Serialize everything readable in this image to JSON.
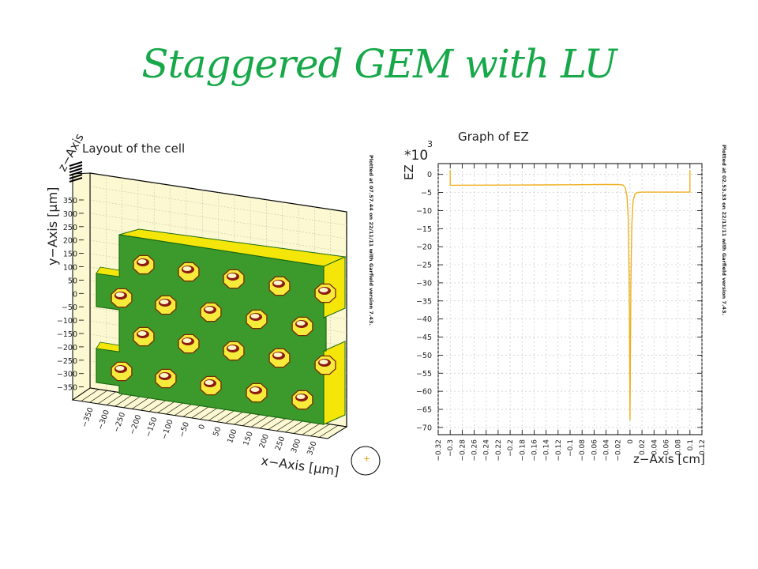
{
  "slide": {
    "title": "Staggered GEM with LU"
  },
  "colors": {
    "title": "#17a84a",
    "board": "#3c9a2d",
    "board_edge": "#f5e60a",
    "hole_rim": "#8b1a10",
    "hole_fill": "#f6ea3a",
    "frame_fill": "#fbf8d2",
    "curve": "#f0b020",
    "grid": "#c8c8c8"
  },
  "left_plot": {
    "title": "Layout of the cell",
    "x_axis_label": "x−Axis [μm]",
    "y_axis_label": "y−Axis [μm]",
    "z_axis_label": "z−Axis",
    "x_ticks": [
      "−350",
      "−300",
      "−250",
      "−200",
      "−150",
      "−100",
      "−50",
      "0",
      "50",
      "100",
      "150",
      "200",
      "250",
      "300",
      "350"
    ],
    "y_ticks": [
      "350",
      "300",
      "250",
      "200",
      "150",
      "100",
      "50",
      "0",
      "−50",
      "−100",
      "−150",
      "−200",
      "−250",
      "−300",
      "−350"
    ],
    "side_note": "Plotted at 07.57.44 on 22/11/11 with Garfield version 7.43.",
    "compass_marker": "+"
  },
  "chart_data": {
    "type": "line",
    "title": "Graph of EZ",
    "xlabel": "z−Axis [cm]",
    "ylabel": "EZ",
    "y_multiplier": "*10",
    "y_multiplier_exp": "3",
    "xlim": [
      -0.32,
      0.12
    ],
    "ylim": [
      -72,
      3
    ],
    "grid": true,
    "x_ticks": [
      -0.32,
      -0.3,
      -0.28,
      -0.26,
      -0.24,
      -0.22,
      -0.2,
      -0.18,
      -0.16,
      -0.14,
      -0.12,
      -0.1,
      -0.08,
      -0.06,
      -0.04,
      -0.02,
      0,
      0.02,
      0.04,
      0.06,
      0.08,
      0.1,
      0.12
    ],
    "x_tick_labels": [
      "−0.32",
      "−0.3",
      "−0.28",
      "−0.26",
      "−0.24",
      "−0.22",
      "−0.2",
      "−0.18",
      "−0.16",
      "−0.14",
      "−0.12",
      "−0.1",
      "−0.08",
      "−0.06",
      "−0.04",
      "−0.02",
      "0",
      "0.02",
      "0.04",
      "0.06",
      "0.08",
      "0.1",
      "0.12"
    ],
    "y_ticks": [
      0,
      -5,
      -10,
      -15,
      -20,
      -25,
      -30,
      -35,
      -40,
      -45,
      -50,
      -55,
      -60,
      -65,
      -70
    ],
    "y_tick_labels": [
      "0",
      "−5",
      "−10",
      "−15",
      "−20",
      "−25",
      "−30",
      "−35",
      "−40",
      "−45",
      "−50",
      "−55",
      "−60",
      "−65",
      "−70"
    ],
    "series": [
      {
        "x": [
          -0.3,
          -0.3,
          -0.25,
          -0.2,
          -0.15,
          -0.1,
          -0.05,
          -0.02,
          -0.012,
          -0.008,
          -0.005,
          -0.003,
          -0.0015,
          -0.0005,
          0,
          0.0005,
          0.0015,
          0.003,
          0.005,
          0.008,
          0.012,
          0.02,
          0.05,
          0.1,
          0.1
        ],
        "y": [
          1.2,
          -3.0,
          -2.98,
          -2.95,
          -2.9,
          -2.85,
          -2.8,
          -2.78,
          -2.9,
          -3.6,
          -6,
          -12,
          -28,
          -52,
          -68,
          -55,
          -30,
          -14,
          -7.5,
          -5.5,
          -5.0,
          -4.9,
          -4.9,
          -4.9,
          1.2
        ]
      }
    ],
    "side_note": "Plotted at 02.53.33 on 22/11/11 with Garfield version 7.43."
  }
}
